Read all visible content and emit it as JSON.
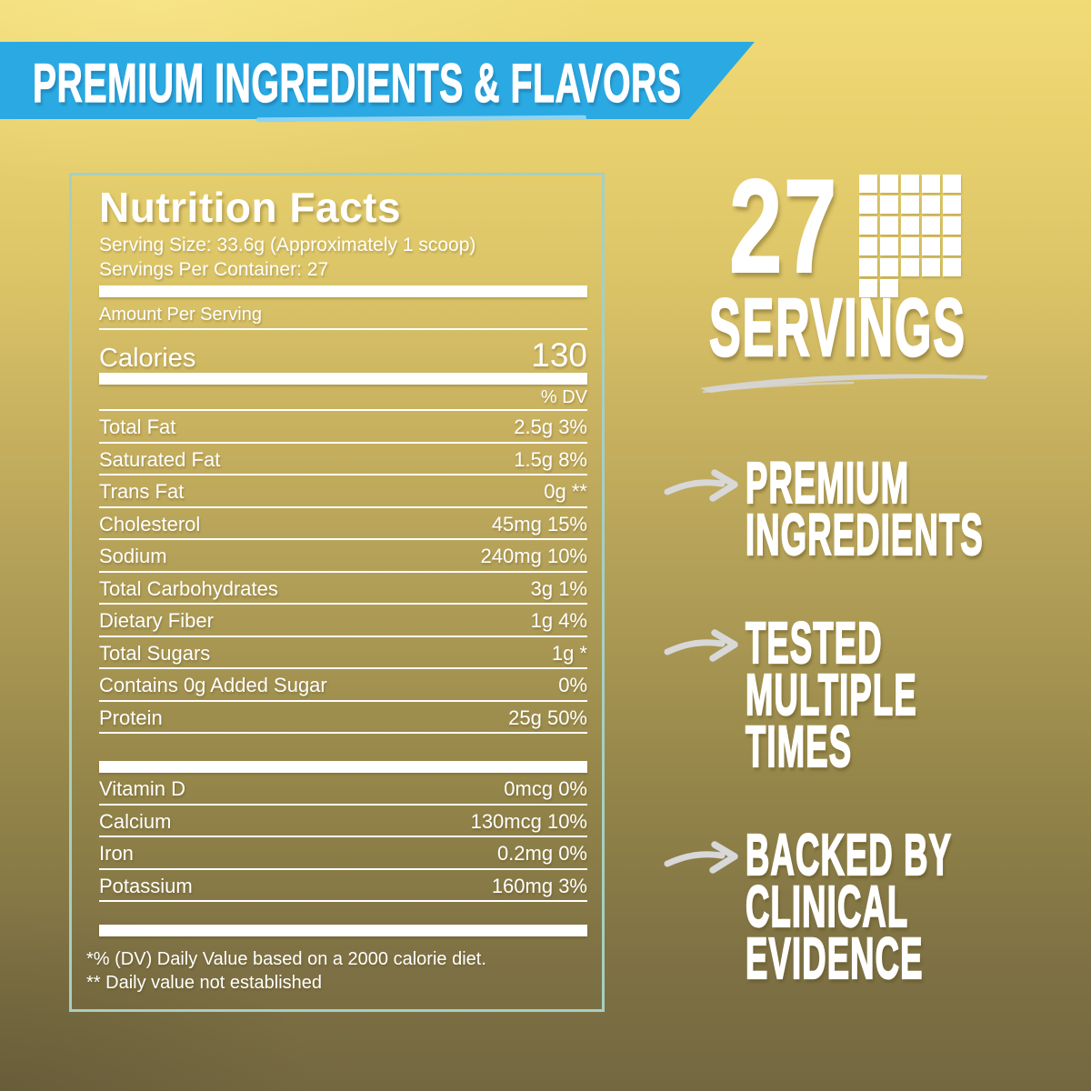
{
  "banner": {
    "label": "PREMIUM INGREDIENTS & FLAVORS"
  },
  "colors": {
    "banner_blue": "#2ba9e2",
    "banner_accent": "#8ed4f2",
    "panel_border": "#a6cfc2",
    "text_white": "#ffffff",
    "arrow_gray": "#d8d8d8",
    "background_top": "#f1db77",
    "background_bottom": "#746841"
  },
  "nutrition": {
    "title": "Nutrition Facts",
    "serving_size": "Serving Size: 33.6g (Approximately 1 scoop)",
    "servings_per_container": "Servings Per Container: 27",
    "amount_per_serving": "Amount Per Serving",
    "calories_label": "Calories",
    "calories_value": "130",
    "dv_header": "% DV",
    "rows": [
      {
        "label": "Total Fat",
        "value": "2.5g 3%"
      },
      {
        "label": "Saturated Fat",
        "value": "1.5g 8%"
      },
      {
        "label": "Trans Fat",
        "value": "0g **"
      },
      {
        "label": "Cholesterol",
        "value": "45mg 15%"
      },
      {
        "label": "Sodium",
        "value": "240mg 10%"
      },
      {
        "label": "Total Carbohydrates",
        "value": "3g 1%"
      },
      {
        "label": "Dietary Fiber",
        "value": "1g 4%"
      },
      {
        "label": "Total Sugars",
        "value": "1g *"
      },
      {
        "label": "Contains 0g Added Sugar",
        "value": "0%"
      },
      {
        "label": "Protein",
        "value": "25g 50%"
      }
    ],
    "vitamin_rows": [
      {
        "label": "Vitamin D",
        "value": "0mcg 0%"
      },
      {
        "label": "Calcium",
        "value": "130mcg 10%"
      },
      {
        "label": "Iron",
        "value": "0.2mg 0%"
      },
      {
        "label": "Potassium",
        "value": "160mg 3%"
      }
    ],
    "footnote_dv": "*% (DV) Daily Value based on a 2000 calorie diet.",
    "footnote_established": "** Daily value not established"
  },
  "servings": {
    "count": "27",
    "label": "SERVINGS"
  },
  "logo": {
    "name": "pixel-p-logo",
    "pattern": [
      "11111",
      "11111",
      "11111",
      "11111",
      "11111",
      "11000"
    ]
  },
  "bullets": [
    {
      "line1": "PREMIUM",
      "line2": "INGREDIENTS"
    },
    {
      "line1": "TESTED",
      "line2": "MULTIPLE",
      "line3": "TIMES"
    },
    {
      "line1": "BACKED BY",
      "line2": "CLINICAL",
      "line3": "EVIDENCE"
    }
  ]
}
